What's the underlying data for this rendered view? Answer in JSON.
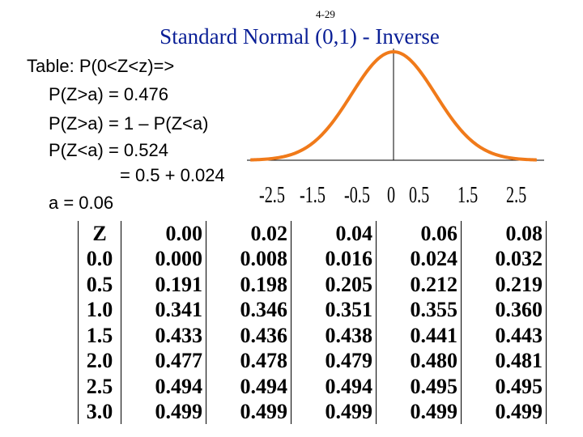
{
  "slide_number": "4-29",
  "title": "Standard Normal (0,1) - Inverse",
  "work_lines": [
    "Table:  P(0<Z<z)=>",
    "P(Z>a) = 0.476",
    "P(Z>a) = 1 – P(Z<a)",
    "P(Z<a) = 0.524",
    "= 0.5 + 0.024",
    "a = 0.06"
  ],
  "curve": {
    "color": "#f07a1a",
    "axis_labels": [
      "-2.5",
      "-1.5",
      "-0.5",
      "0",
      "0.5",
      "1.5",
      "2.5"
    ]
  },
  "table": {
    "headers": [
      "Z",
      "0.00",
      "0.02",
      "0.04",
      "0.06",
      "0.08"
    ],
    "rows": [
      [
        "0.0",
        "0.000",
        "0.008",
        "0.016",
        "0.024",
        "0.032"
      ],
      [
        "0.5",
        "0.191",
        "0.198",
        "0.205",
        "0.212",
        "0.219"
      ],
      [
        "1.0",
        "0.341",
        "0.346",
        "0.351",
        "0.355",
        "0.360"
      ],
      [
        "1.5",
        "0.433",
        "0.436",
        "0.438",
        "0.441",
        "0.443"
      ],
      [
        "2.0",
        "0.477",
        "0.478",
        "0.479",
        "0.480",
        "0.481"
      ],
      [
        "2.5",
        "0.494",
        "0.494",
        "0.494",
        "0.495",
        "0.495"
      ],
      [
        "3.0",
        "0.499",
        "0.499",
        "0.499",
        "0.499",
        "0.499"
      ]
    ]
  }
}
